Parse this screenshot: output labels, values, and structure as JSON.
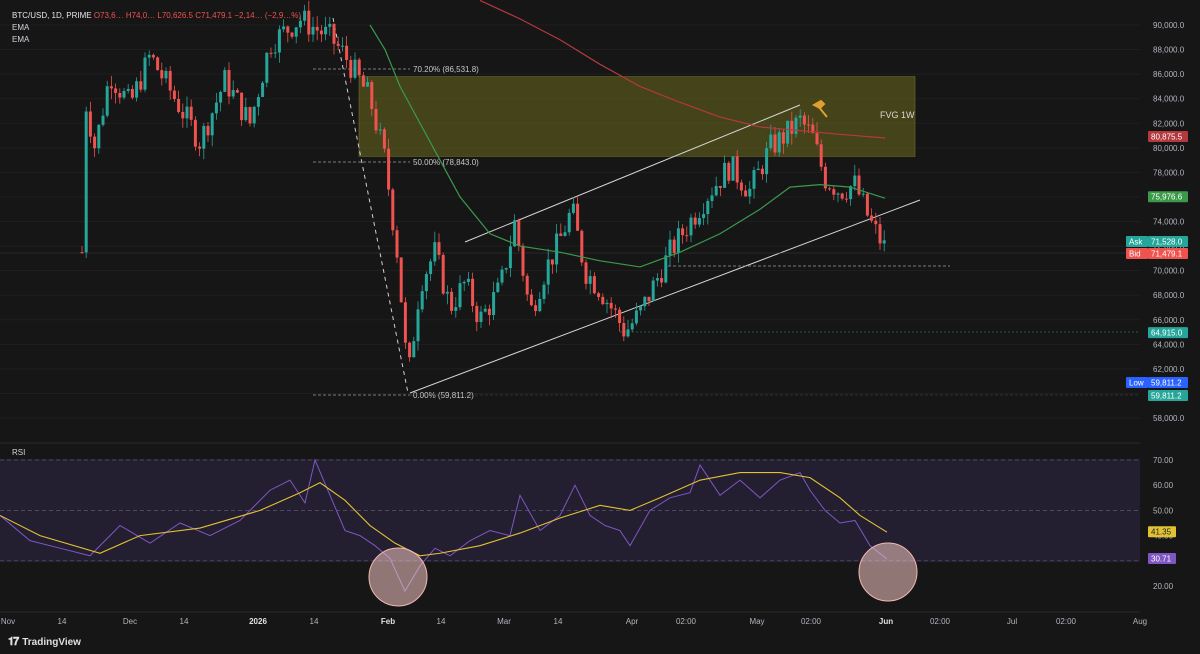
{
  "legend": {
    "symbol": "BTC/USD, 1D, PRIME",
    "ohlc": "O73,6… H74,0… L70,626.5 C71,479.1 −2,14… (−2,9…%)",
    "indicators": [
      "EMA",
      "EMA"
    ]
  },
  "rsi_label": "RSI",
  "footer": {
    "logo_text": "TradingView",
    "logo_icon": "tradingview-logo-icon"
  },
  "annotations": {
    "fib_702": "70.20% (86,531.8)",
    "fib_50": "50.00% (78,843.0)",
    "fib_0": "0.00% (59,811.2)",
    "fvg": "FVG 1W"
  },
  "colors": {
    "up": "#26a69a",
    "down": "#ef5350",
    "ema_fast": "#3b9a4a",
    "ema_slow": "#b4393e",
    "rsi": "#7e57c2",
    "rsi_ma": "#e2c234",
    "fvg": "#6b6a1e"
  },
  "chart_data": [
    {
      "type": "candlestick",
      "title": "BTC/USD, 1D, PRIME",
      "ylim": [
        56500,
        91000
      ],
      "price_ticks": [
        "90,000.0",
        "88,000.0",
        "86,000.0",
        "84,000.0",
        "82,000.0",
        "80,000.0",
        "78,000.0",
        "76,000.0",
        "74,000.0",
        "72,000.0",
        "70,000.0",
        "68,000.0",
        "66,000.0",
        "64,000.0",
        "62,000.0",
        "60,000.0",
        "58,000.0"
      ],
      "time_ticks": [
        "Nov",
        "14",
        "Dec",
        "14",
        "2026",
        "14",
        "Feb",
        "14",
        "Mar",
        "14",
        "Apr",
        "02:00",
        "May",
        "02:00",
        "Jun",
        "02:00",
        "Jul",
        "02:00",
        "Aug"
      ],
      "price_badges": [
        {
          "label": "",
          "value": "80,875.5",
          "color": "#b4393e"
        },
        {
          "label": "",
          "value": "75,976.6",
          "color": "#3b9a4a"
        },
        {
          "label": "Ask",
          "value": "71,528.0",
          "color": "#26a69a"
        },
        {
          "label": "Bid",
          "value": "71,479.1",
          "color": "#ef5350"
        },
        {
          "label": "",
          "value": "64,915.0",
          "color": "#26a69a"
        },
        {
          "label": "Low",
          "value": "59,811.2",
          "color": "#2962ff"
        },
        {
          "label": "",
          "value": "59,811.2",
          "color": "#26a69a"
        }
      ],
      "fvg_zone": [
        79300,
        85800
      ],
      "fib_levels": [
        86531.8,
        78843.0,
        59811.2
      ]
    },
    {
      "type": "line",
      "title": "RSI",
      "ylim": [
        14,
        72
      ],
      "ticks": [
        "70.00",
        "60.00",
        "50.00",
        "40.00",
        "30.00",
        "20.00"
      ],
      "badges": [
        {
          "value": "41.35",
          "color": "#e2c234"
        },
        {
          "value": "30.71",
          "color": "#7e57c2"
        }
      ],
      "last_rsi": 30.71,
      "last_ma": 41.35
    }
  ]
}
